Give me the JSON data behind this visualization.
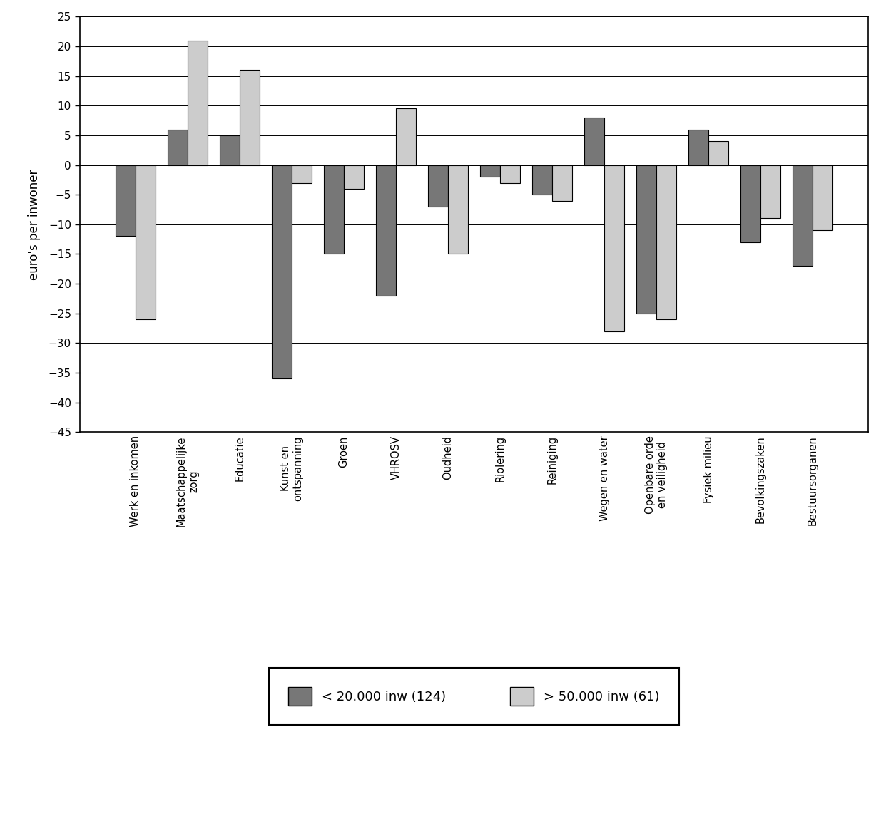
{
  "categories": [
    "Werk en inkomen",
    "Maatschappelijke\nzorg",
    "Educatie",
    "Kunst en\nontspanning",
    "Groen",
    "VHROSV",
    "Oudheid",
    "Riolering",
    "Reiniging",
    "Wegen en water",
    "Openbare orde\nen veiligheid",
    "Fysiek milieu",
    "Bevolkingszaken",
    "Bestuursorganen"
  ],
  "small_mun": [
    -12,
    6,
    5,
    -36,
    -15,
    -22,
    -7,
    -2,
    -5,
    8,
    -25,
    6,
    -13,
    -17
  ],
  "large_mun": [
    -26,
    21,
    16,
    -3,
    -4,
    9.5,
    -15,
    -3,
    -6,
    -28,
    -26,
    4,
    -9,
    -11
  ],
  "color_small": "#777777",
  "color_large": "#cccccc",
  "ylabel": "euro's per inwoner",
  "ylim_min": -45,
  "ylim_max": 25,
  "yticks": [
    -45,
    -40,
    -35,
    -30,
    -25,
    -20,
    -15,
    -10,
    -5,
    0,
    5,
    10,
    15,
    20,
    25
  ],
  "legend_small": "< 20.000 inw (124)",
  "legend_large": "> 50.000 inw (61)",
  "bar_width": 0.38
}
